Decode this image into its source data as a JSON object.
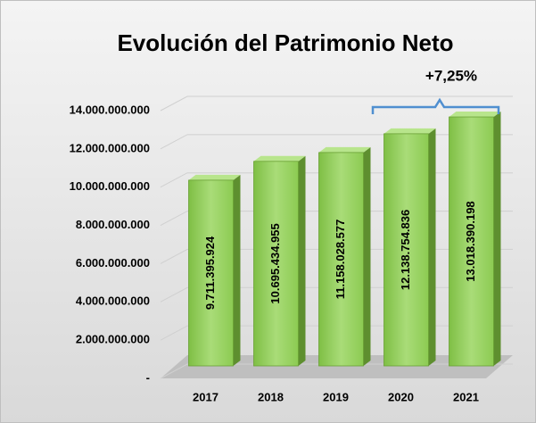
{
  "chart_data": {
    "type": "bar",
    "title": "Evolución del Patrimonio Neto",
    "categories": [
      "2017",
      "2018",
      "2019",
      "2020",
      "2021"
    ],
    "values": [
      9711395924,
      10695434955,
      11158028577,
      12138754836,
      13018390198
    ],
    "value_labels": [
      "9.711.395.924",
      "10.695.434.955",
      "11.158.028.577",
      "12.138.754.836",
      "13.018.390.198"
    ],
    "color": "#92d050",
    "ylim": [
      0,
      14000000000
    ],
    "yticks": [
      {
        "value": 0,
        "label": "-"
      },
      {
        "value": 2000000000,
        "label": "2.000.000.000"
      },
      {
        "value": 4000000000,
        "label": "4.000.000.000"
      },
      {
        "value": 6000000000,
        "label": "6.000.000.000"
      },
      {
        "value": 8000000000,
        "label": "8.000.000.000"
      },
      {
        "value": 10000000000,
        "label": "10.000.000.000"
      },
      {
        "value": 12000000000,
        "label": "12.000.000.000"
      },
      {
        "value": 14000000000,
        "label": "14.000.000.000"
      }
    ],
    "grid": true,
    "annotation": "+7,25%"
  }
}
